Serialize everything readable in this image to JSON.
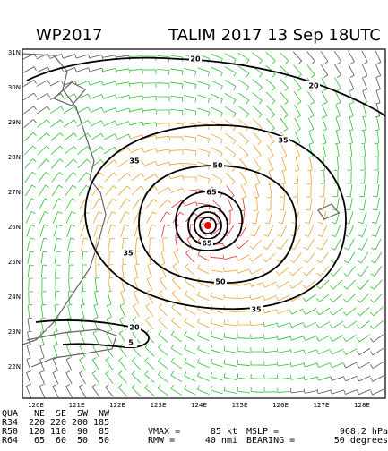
{
  "header": {
    "left": "WP2017",
    "right": "TALIM 2017 13 Sep 18UTC"
  },
  "map": {
    "lat_labels": [
      "31N",
      "30N",
      "29N",
      "28N",
      "27N",
      "26N",
      "25N",
      "24N",
      "23N",
      "22N"
    ],
    "lon_labels": [
      "120E",
      "121E",
      "122E",
      "123E",
      "124E",
      "125E",
      "126E",
      "127E",
      "128E"
    ],
    "contour_labels": [
      "20",
      "20",
      "35",
      "35",
      "50",
      "65",
      "65",
      "35",
      "50",
      "35",
      "20",
      "5"
    ]
  },
  "stats": {
    "rows": [
      [
        "QUA",
        "NE",
        "SE",
        "SW",
        "NW"
      ],
      [
        "R34",
        "220",
        "220",
        "200",
        "185"
      ],
      [
        "R50",
        "120",
        "110",
        "90",
        "85"
      ],
      [
        "R64",
        "65",
        "60",
        "50",
        "50"
      ]
    ]
  },
  "summary": [
    [
      "VMAX =",
      "85 kt",
      "MSLP =",
      "968.2 hPa"
    ],
    [
      "RMW =",
      "40 nmi",
      "BEARING =",
      "50 degrees"
    ]
  ]
}
